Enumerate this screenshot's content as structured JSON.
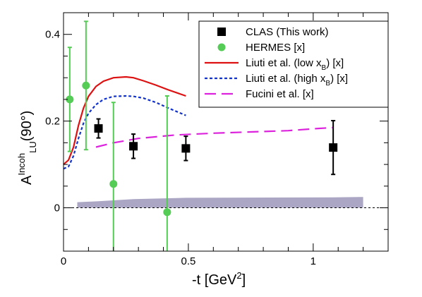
{
  "chart_data": {
    "type": "scatter",
    "title": "",
    "xlabel": "-t [GeV",
    "xlabel_sup": "2",
    "xlabel_end": "]",
    "ylabel_main": "A",
    "ylabel_sup": "Incoh",
    "ylabel_sub": "LU",
    "ylabel_tail": "(90°)",
    "xlim": [
      0,
      1.3
    ],
    "ylim": [
      -0.1,
      0.45
    ],
    "x_ticks": [
      0,
      0.5,
      1
    ],
    "x_tick_labels": [
      "0",
      "0.5",
      "1"
    ],
    "y_ticks": [
      0,
      0.2,
      0.4
    ],
    "y_tick_labels": [
      "0",
      "0.2",
      "0.4"
    ],
    "zero_line": true,
    "legend_position": "top-right",
    "series": [
      {
        "name": "CLAS (This work)",
        "kind": "points",
        "marker": "square",
        "color": "#000000",
        "x": [
          0.14,
          0.28,
          0.49,
          1.08
        ],
        "y": [
          0.183,
          0.142,
          0.137,
          0.139
        ],
        "yerr": [
          0.022,
          0.028,
          0.028,
          0.062
        ]
      },
      {
        "name": "HERMES [x]",
        "kind": "points",
        "marker": "circle",
        "color": "#55cc55",
        "x": [
          0.025,
          0.09,
          0.2,
          0.415
        ],
        "y": [
          0.25,
          0.282,
          0.055,
          -0.01
        ],
        "yerr": [
          0.12,
          0.148,
          0.188,
          0.268
        ]
      },
      {
        "name": "Liuti et al. (low x",
        "name_sub": "B",
        "name_end": ") [x]",
        "kind": "line",
        "dash": "solid",
        "color": "#dd1111",
        "x": [
          0,
          0.02,
          0.04,
          0.06,
          0.08,
          0.1,
          0.13,
          0.16,
          0.2,
          0.25,
          0.28,
          0.32,
          0.37,
          0.42,
          0.49
        ],
        "y": [
          0.1,
          0.11,
          0.14,
          0.19,
          0.23,
          0.257,
          0.28,
          0.292,
          0.3,
          0.302,
          0.3,
          0.293,
          0.283,
          0.272,
          0.258
        ]
      },
      {
        "name": "Liuti et al. (high x",
        "name_sub": "B",
        "name_end": ") [x]",
        "kind": "line",
        "dash": "dotted",
        "color": "#1133cc",
        "x": [
          0,
          0.02,
          0.04,
          0.06,
          0.08,
          0.1,
          0.13,
          0.16,
          0.2,
          0.25,
          0.28,
          0.32,
          0.37,
          0.42,
          0.49
        ],
        "y": [
          0.09,
          0.095,
          0.12,
          0.16,
          0.195,
          0.218,
          0.238,
          0.25,
          0.257,
          0.258,
          0.257,
          0.253,
          0.243,
          0.23,
          0.213
        ]
      },
      {
        "name": "Fucini et al. [x]",
        "kind": "line",
        "dash": "dashed",
        "color": "#dd22dd",
        "x": [
          0.13,
          0.2,
          0.3,
          0.45,
          0.6,
          0.75,
          0.9,
          1.02,
          1.08
        ],
        "y": [
          0.14,
          0.15,
          0.16,
          0.168,
          0.172,
          0.175,
          0.178,
          0.183,
          0.185
        ]
      },
      {
        "name": "",
        "kind": "band",
        "color": "#aaa6c4",
        "x": [
          0.055,
          0.14,
          0.28,
          0.49,
          1.08,
          1.2
        ],
        "y_low": [
          0,
          0,
          0,
          0,
          0,
          0
        ],
        "y_high": [
          0.013,
          0.015,
          0.02,
          0.023,
          0.024,
          0.025
        ]
      }
    ]
  }
}
